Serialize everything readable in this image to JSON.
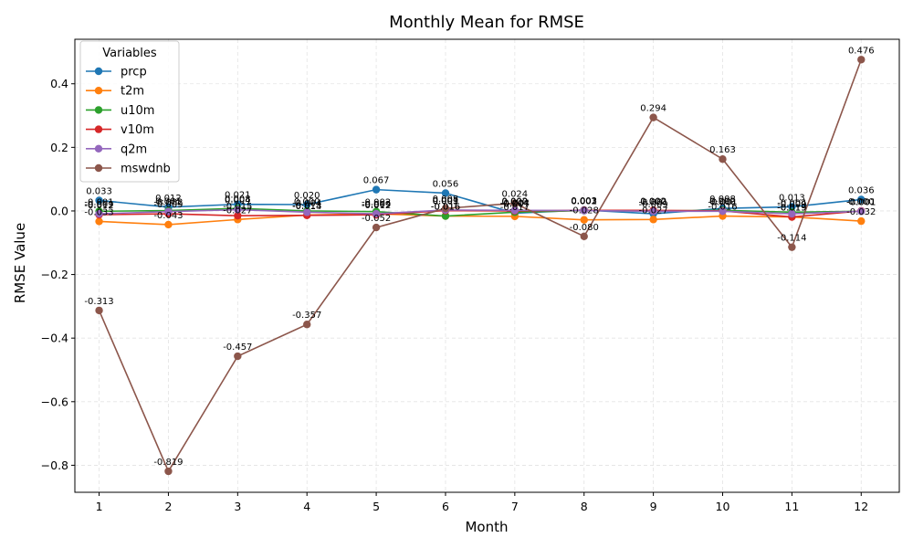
{
  "chart_data": {
    "type": "line",
    "title": "Monthly Mean for RMSE",
    "xlabel": "Month",
    "ylabel": "RMSE Value",
    "x": [
      1,
      2,
      3,
      4,
      5,
      6,
      7,
      8,
      9,
      10,
      11,
      12
    ],
    "xlim": [
      0.65,
      12.55
    ],
    "ylim": [
      -0.885,
      0.54
    ],
    "yticks": [
      -0.8,
      -0.6,
      -0.4,
      -0.2,
      0.0,
      0.2,
      0.4
    ],
    "ytick_labels": [
      "−0.8",
      "−0.6",
      "−0.4",
      "−0.2",
      "0.0",
      "0.2",
      "0.4"
    ],
    "grid": true,
    "legend": {
      "title": "Variables",
      "placement": "top-left"
    },
    "series": [
      {
        "name": "prcp",
        "color": "#1f77b4",
        "values": [
          0.033,
          0.012,
          0.021,
          0.02,
          0.067,
          0.056,
          -0.007,
          0.003,
          -0.009,
          0.008,
          0.013,
          0.036
        ]
      },
      {
        "name": "t2m",
        "color": "#ff7f0e",
        "values": [
          -0.033,
          -0.043,
          -0.027,
          -0.013,
          -0.009,
          -0.016,
          -0.017,
          -0.028,
          -0.027,
          -0.016,
          -0.019,
          -0.032
        ]
      },
      {
        "name": "u10m",
        "color": "#2ca02c",
        "values": [
          -0.001,
          0.001,
          0.008,
          0.0,
          -0.002,
          -0.016,
          -0.004,
          0.001,
          0.0,
          0.002,
          -0.004,
          -0.001
        ]
      },
      {
        "name": "v10m",
        "color": "#d62728",
        "values": [
          -0.012,
          -0.009,
          -0.015,
          -0.014,
          -0.012,
          0.001,
          0.0,
          0.002,
          0.002,
          0.0,
          -0.019,
          0.0
        ]
      },
      {
        "name": "q2m",
        "color": "#9467bd",
        "values": [
          -0.009,
          -0.002,
          0.004,
          -0.004,
          -0.009,
          0.003,
          0.002,
          0.001,
          -0.001,
          -0.001,
          -0.009,
          -0.001
        ]
      },
      {
        "name": "mswdnb",
        "color": "#8c564b",
        "values": [
          -0.313,
          -0.819,
          -0.457,
          -0.357,
          -0.052,
          0.008,
          0.024,
          -0.08,
          0.294,
          0.163,
          -0.114,
          0.476
        ]
      }
    ],
    "data_labels": [
      [
        "0.033",
        "0.012",
        "0.021",
        "0.020",
        "0.067",
        "0.056",
        "-0.007",
        "0.003",
        "-0.009",
        "0.008",
        "0.013",
        "0.036"
      ],
      [
        "-0.033",
        "-0.043",
        "-0.027",
        "-0.013",
        "-0.009",
        "-0.016",
        "-0.017",
        "-0.028",
        "-0.027",
        "-0.016",
        "-0.019",
        "-0.032"
      ],
      [
        "-0.001",
        "0.001",
        "0.008",
        "0.000",
        "-0.002",
        "-0.016",
        "-0.004",
        "0.001",
        "0.000",
        "0.002",
        "-0.004",
        "-0.001"
      ],
      [
        "-0.012",
        "-0.009",
        "-0.015",
        "-0.014",
        "-0.012",
        "0.001",
        "0.000",
        "0.002",
        "0.002",
        "0.000",
        "-0.019",
        "0.000"
      ],
      [
        "-0.009",
        "-0.002",
        "0.004",
        "-0.004",
        "-0.009",
        "0.003",
        "0.002",
        "0.001",
        "-0.001",
        "-0.001",
        "-0.009",
        "-0.001"
      ],
      [
        "-0.313",
        "-0.819",
        "-0.457",
        "-0.357",
        "-0.052",
        "0.008",
        "0.024",
        "-0.080",
        "0.294",
        "0.163",
        "-0.114",
        "0.476"
      ]
    ]
  }
}
